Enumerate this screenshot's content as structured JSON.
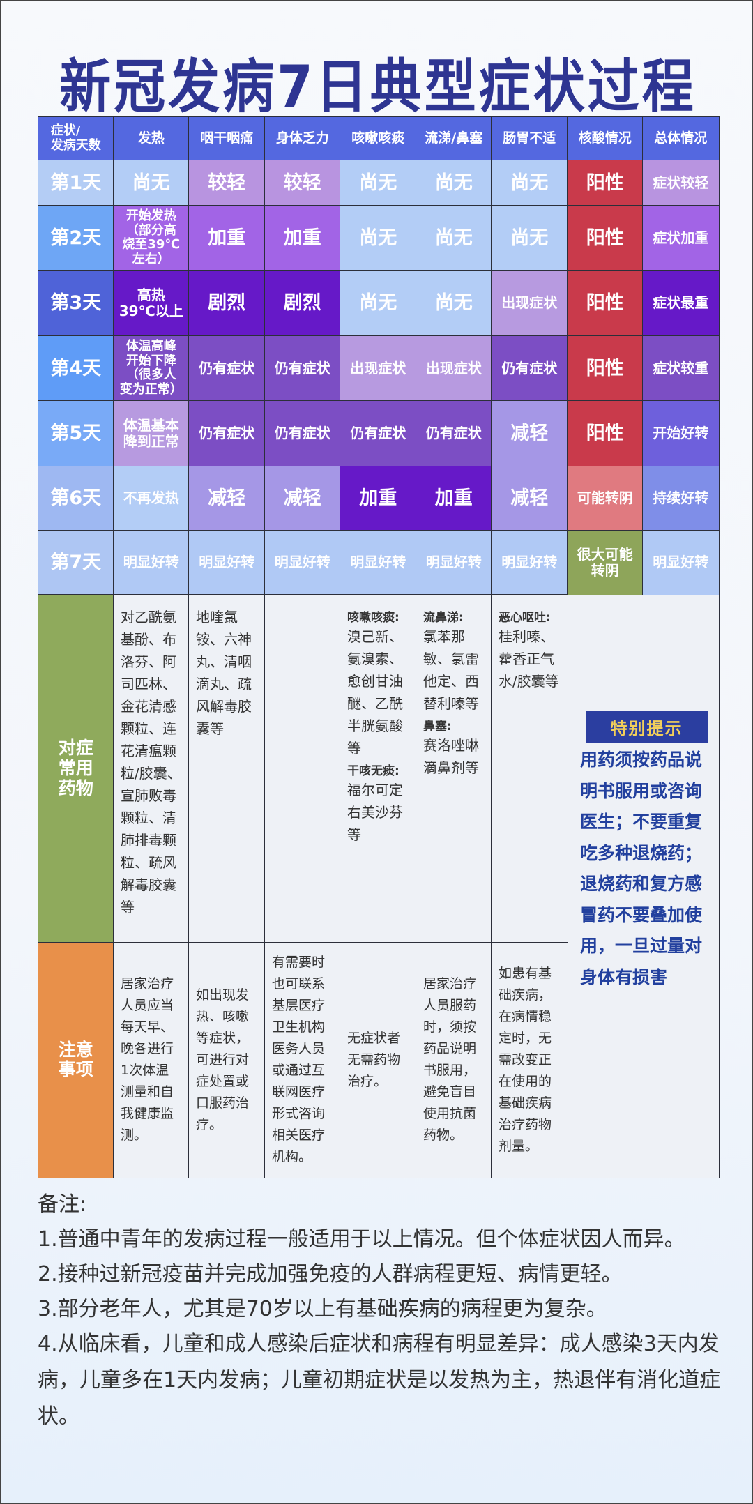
{
  "title": "新冠发病7日典型症状过程",
  "headers": [
    "症状/\n发病天数",
    "发热",
    "咽干咽痛",
    "身体乏力",
    "咳嗽咳痰",
    "流涕/鼻塞",
    "肠胃不适",
    "核酸情况",
    "总体情况"
  ],
  "colors": {
    "header": "#5468e0",
    "none": "#b3cdf6",
    "mild": "#b894e0",
    "worse": "#a264e6",
    "severe": "#6619c8",
    "ongoing": "#7c4ec4",
    "appear": "#b79ae0",
    "positive": "#c93a4b",
    "maybe_neg": "#e07a80",
    "likely_neg": "#8ea55a",
    "reduce": "#a597e6",
    "better": "#b0c9f5",
    "start_better": "#6e60dc",
    "cont_better": "#7f8ee8",
    "meds_label": "#8faa5c",
    "notes_label": "#e8904a"
  },
  "rows": [
    {
      "day": "第1天",
      "day_color": "#b4cdf5",
      "cells": [
        [
          "尚无",
          "none"
        ],
        [
          "较轻",
          "mild"
        ],
        [
          "较轻",
          "mild"
        ],
        [
          "尚无",
          "none"
        ],
        [
          "尚无",
          "none"
        ],
        [
          "尚无",
          "none"
        ],
        [
          "阳性",
          "positive"
        ],
        [
          "症状较轻",
          "mild"
        ]
      ]
    },
    {
      "day": "第2天",
      "day_color": "#6ea6f5",
      "cells": [
        [
          "开始发热\n（部分高\n烧至39℃\n左右）",
          "worse"
        ],
        [
          "加重",
          "worse"
        ],
        [
          "加重",
          "worse"
        ],
        [
          "尚无",
          "none"
        ],
        [
          "尚无",
          "none"
        ],
        [
          "尚无",
          "none"
        ],
        [
          "阳性",
          "positive"
        ],
        [
          "症状加重",
          "worse"
        ]
      ]
    },
    {
      "day": "第3天",
      "day_color": "#4f63d8",
      "cells": [
        [
          "高热\n39℃以上",
          "severe"
        ],
        [
          "剧烈",
          "severe"
        ],
        [
          "剧烈",
          "severe"
        ],
        [
          "尚无",
          "none"
        ],
        [
          "尚无",
          "none"
        ],
        [
          "出现症状",
          "appear"
        ],
        [
          "阳性",
          "positive"
        ],
        [
          "症状最重",
          "severe"
        ]
      ]
    },
    {
      "day": "第4天",
      "day_color": "#5f9cf7",
      "cells": [
        [
          "体温高峰\n开始下降\n（很多人\n变为正常）",
          "ongoing"
        ],
        [
          "仍有症状",
          "ongoing"
        ],
        [
          "仍有症状",
          "ongoing"
        ],
        [
          "出现症状",
          "appear"
        ],
        [
          "出现症状",
          "appear"
        ],
        [
          "仍有症状",
          "ongoing"
        ],
        [
          "阳性",
          "positive"
        ],
        [
          "症状较重",
          "ongoing"
        ]
      ]
    },
    {
      "day": "第5天",
      "day_color": "#79aaf7",
      "cells": [
        [
          "体温基本\n降到正常",
          "appear"
        ],
        [
          "仍有症状",
          "ongoing"
        ],
        [
          "仍有症状",
          "ongoing"
        ],
        [
          "仍有症状",
          "ongoing"
        ],
        [
          "仍有症状",
          "ongoing"
        ],
        [
          "减轻",
          "reduce"
        ],
        [
          "阳性",
          "positive"
        ],
        [
          "开始好转",
          "start_better"
        ]
      ]
    },
    {
      "day": "第6天",
      "day_color": "#9eb8f2",
      "cells": [
        [
          "不再发热",
          "none"
        ],
        [
          "减轻",
          "reduce"
        ],
        [
          "减轻",
          "reduce"
        ],
        [
          "加重",
          "severe"
        ],
        [
          "加重",
          "severe"
        ],
        [
          "减轻",
          "reduce"
        ],
        [
          "可能转阴",
          "maybe_neg"
        ],
        [
          "持续好转",
          "cont_better"
        ]
      ]
    },
    {
      "day": "第7天",
      "day_color": "#aec6f3",
      "cells": [
        [
          "明显好转",
          "better"
        ],
        [
          "明显好转",
          "better"
        ],
        [
          "明显好转",
          "better"
        ],
        [
          "明显好转",
          "better"
        ],
        [
          "明显好转",
          "better"
        ],
        [
          "明显好转",
          "better"
        ],
        [
          "很大可能\n转阴",
          "likely_neg"
        ],
        [
          "明显好转",
          "better"
        ]
      ]
    }
  ],
  "meds": {
    "label": "对症\n常用\n药物",
    "cells": [
      [
        {
          "h": "",
          "b": "对乙酰氨基酚、布洛芬、阿司匹林、金花清感颗粒、连花清瘟颗粒/胶囊、宣肺败毒颗粒、清肺排毒颗粒、疏风解毒胶囊等"
        }
      ],
      [
        {
          "h": "",
          "b": "地喹氯铵、六神丸、清咽滴丸、疏风解毒胶囊等"
        }
      ],
      [],
      [
        {
          "h": "咳嗽咳痰:",
          "b": "溴己新、氨溴索、愈创甘油醚、乙酰半胱氨酸等"
        },
        {
          "h": "干咳无痰:",
          "b": "福尔可定右美沙芬等"
        }
      ],
      [
        {
          "h": "流鼻涕:",
          "b": "氯苯那敏、氯雷他定、西替利嗪等"
        },
        {
          "h": "鼻塞:",
          "b": "赛洛唑啉滴鼻剂等"
        }
      ],
      [
        {
          "h": "恶心呕吐:",
          "b": "桂利嗪、藿香正气水/胶囊等"
        }
      ]
    ]
  },
  "notes": {
    "label": "注意\n事项",
    "cells": [
      "居家治疗人员应当每天早、晚各进行1次体温测量和自我健康监测。",
      "如出现发热、咳嗽等症状，可进行对症处置或口服药治疗。",
      "有需要时也可联系基层医疗卫生机构医务人员或通过互联网医疗形式咨询相关医疗机构。",
      "无症状者无需药物治疗。",
      "居家治疗人员服药时，须按药品说明书服用，避免盲目使用抗菌药物。",
      "如患有基础疾病，在病情稳定时，无需改变正在使用的基础疾病治疗药物剂量。"
    ]
  },
  "tip": {
    "title": "特别提示",
    "text": "用药须按药品说明书服用或咨询医生；不要重复吃多种退烧药；退烧药和复方感冒药不要叠加使用，一旦过量对身体有损害"
  },
  "remarks": [
    "备注:",
    "1.普通中青年的发病过程一般适用于以上情况。但个体症状因人而异。",
    "2.接种过新冠疫苗并完成加强免疫的人群病程更短、病情更轻。",
    "3.部分老年人，尤其是70岁以上有基础疾病的病程更为复杂。",
    "4.从临床看，儿童和成人感染后症状和病程有明显差异：成人感染3天内发病，儿童多在1天内发病；儿童初期症状是以发热为主，热退伴有消化道症状。"
  ]
}
